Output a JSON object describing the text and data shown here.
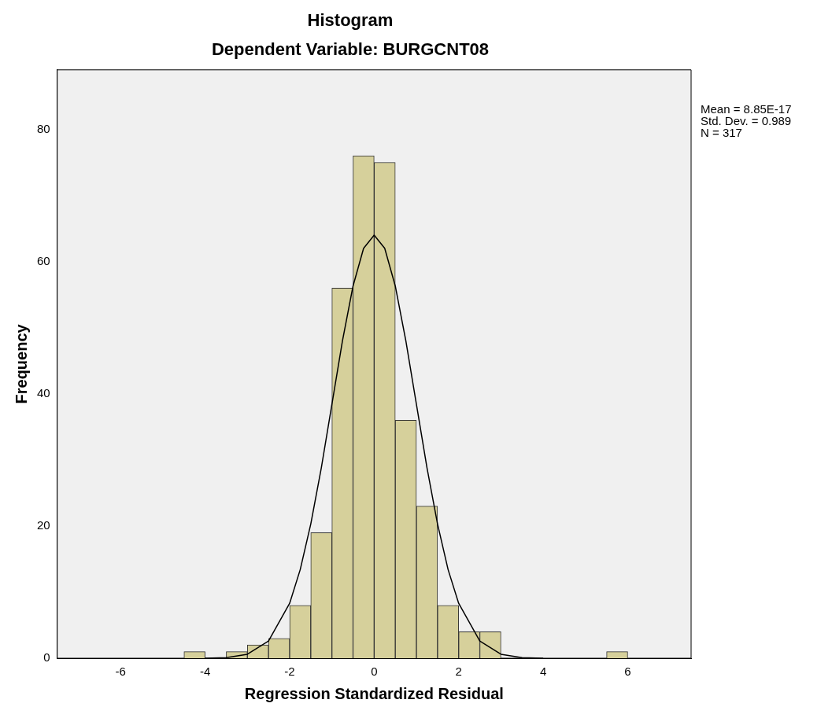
{
  "chart_data": {
    "type": "histogram",
    "title": "Histogram",
    "subtitle": "Dependent Variable: BURGCNT08",
    "xlabel": "Regression Standardized Residual",
    "ylabel": "Frequency",
    "bins": [
      -4.5,
      -4,
      -3.5,
      -3,
      -2.5,
      -2,
      -1.5,
      -1,
      -0.5,
      0,
      0.5,
      1,
      1.5,
      2,
      2.5,
      3,
      3.5,
      4,
      4.5,
      5,
      5.5,
      6
    ],
    "values": [
      1,
      0,
      1,
      2,
      3,
      8,
      19,
      56,
      76,
      75,
      36,
      23,
      8,
      4,
      4,
      0,
      0,
      0,
      0,
      0,
      1
    ],
    "color": "#d6d09b",
    "series": [
      {
        "type": "line",
        "color": "#000000",
        "x": [
          -4,
          -3.5,
          -3,
          -2.5,
          -2,
          -1.75,
          -1.5,
          -1.25,
          -1,
          -0.75,
          -0.5,
          -0.25,
          0,
          0.25,
          0.5,
          0.75,
          1,
          1.25,
          1.5,
          1.75,
          2,
          2.5,
          3,
          3.5,
          4
        ],
        "values": [
          0,
          0.1,
          0.6,
          2.6,
          8.3,
          13.4,
          20.3,
          28.8,
          38.4,
          48,
          56.3,
          62,
          64,
          62,
          56.3,
          48,
          38.4,
          28.8,
          20.3,
          13.4,
          8.3,
          2.6,
          0.6,
          0.1,
          0
        ]
      }
    ],
    "xlim": [
      -7.5,
      7.5
    ],
    "xticks": [
      -6,
      -4,
      -2,
      0,
      2,
      4,
      6
    ],
    "ylim": [
      0,
      89
    ],
    "yticks": [
      0,
      20,
      40,
      60,
      80
    ],
    "grid": false,
    "legend": false,
    "marker": "none",
    "annotations": [
      "Mean = 8.85E-17",
      "Std. Dev. = 0.989",
      "N = 317"
    ]
  }
}
